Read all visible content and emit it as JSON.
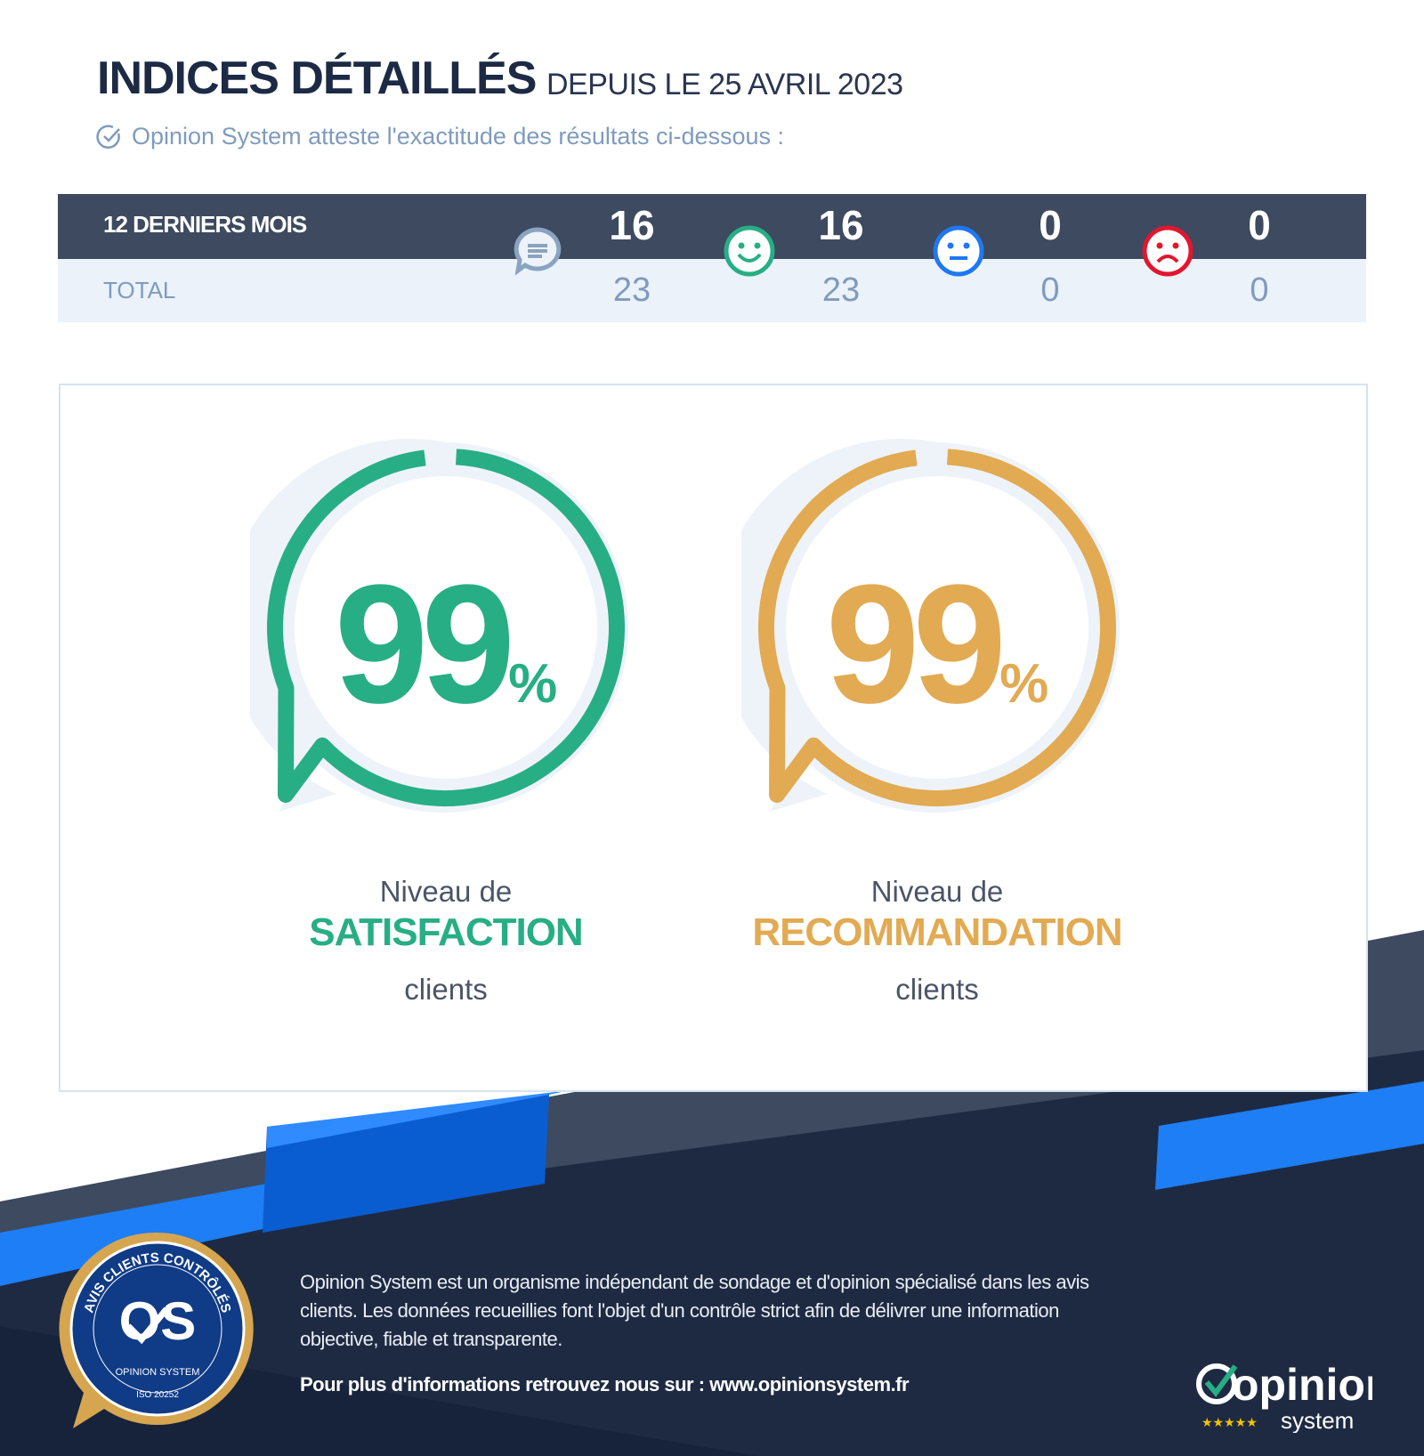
{
  "header": {
    "title": "INDICES DÉTAILLÉS",
    "since": "DEPUIS LE 25 AVRIL 2023",
    "attest": "Opinion System atteste l'exactitude des résultats ci-dessous :"
  },
  "stats": {
    "row1_label": "12 DERNIERS MOIS",
    "row2_label": "TOTAL",
    "columns": [
      {
        "icon": "speech-bubble-icon",
        "last12": "16",
        "total": "23",
        "color": "#8aa3c0"
      },
      {
        "icon": "happy-face-icon",
        "last12": "16",
        "total": "23",
        "color": "#27ae85"
      },
      {
        "icon": "neutral-face-icon",
        "last12": "0",
        "total": "0",
        "color": "#1e78f0"
      },
      {
        "icon": "sad-face-icon",
        "last12": "0",
        "total": "0",
        "color": "#e2162f"
      }
    ]
  },
  "gauges": [
    {
      "value": "99",
      "unit": "%",
      "percent": 99,
      "line1": "Niveau de",
      "line2": "SATISFACTION",
      "line3": "clients",
      "color": "#27ae85"
    },
    {
      "value": "99",
      "unit": "%",
      "percent": 99,
      "line1": "Niveau de",
      "line2": "RECOMMANDATION",
      "line3": "clients",
      "color": "#e2aa52"
    }
  ],
  "footer": {
    "text": "Opinion System est un organisme indépendant de sondage et d'opinion spécialisé dans les avis clients. Les données recueillies font l'objet d'un contrôle strict afin de délivrer une information objective, fiable et transparente.",
    "link": "Pour plus d'informations retrouvez nous sur : www.opinionsystem.fr",
    "badge": {
      "ring": "AVIS CLIENTS CONTRÔLÉS",
      "brand": "OPINION SYSTEM",
      "iso": "ISO 20252"
    },
    "logo": {
      "word": "opinion",
      "sub": "system"
    }
  }
}
